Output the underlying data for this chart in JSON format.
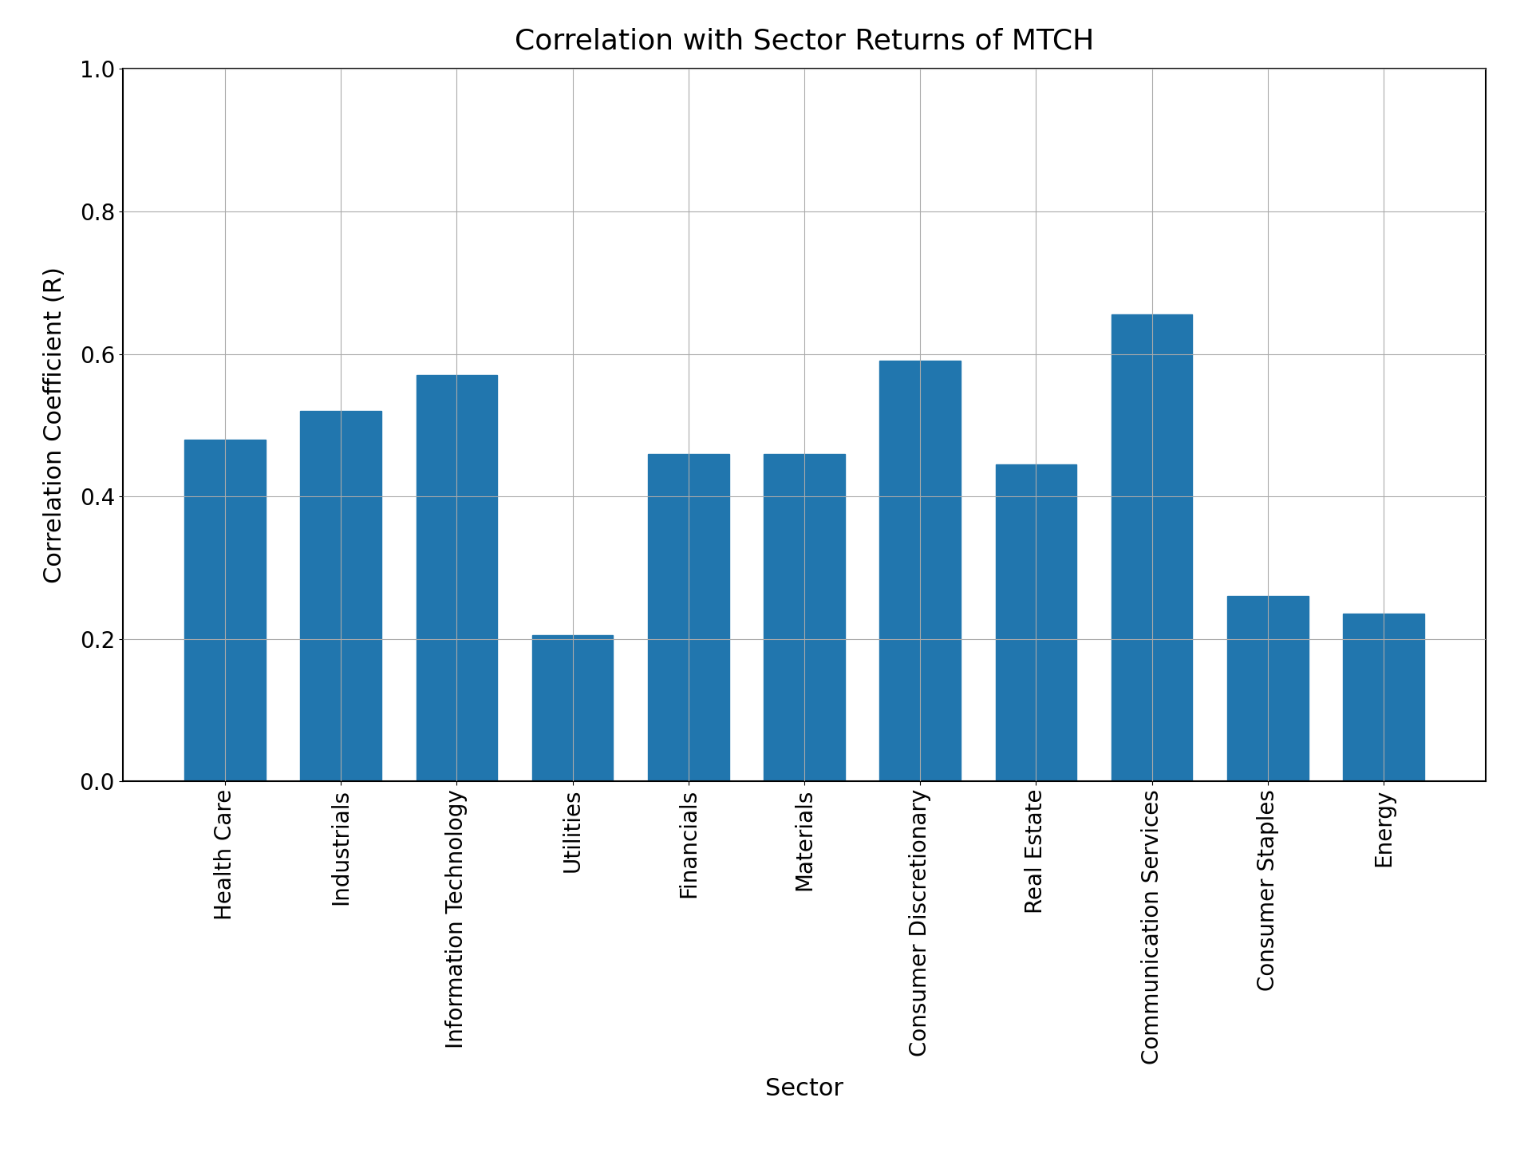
{
  "title": "Correlation with Sector Returns of MTCH",
  "xlabel": "Sector",
  "ylabel": "Correlation Coefficient (R)",
  "categories": [
    "Health Care",
    "Industrials",
    "Information Technology",
    "Utilities",
    "Financials",
    "Materials",
    "Consumer Discretionary",
    "Real Estate",
    "Communication Services",
    "Consumer Staples",
    "Energy"
  ],
  "values": [
    0.48,
    0.52,
    0.57,
    0.205,
    0.46,
    0.46,
    0.59,
    0.445,
    0.655,
    0.26,
    0.235
  ],
  "bar_color": "#2176AE",
  "ylim": [
    0.0,
    1.0
  ],
  "yticks": [
    0.0,
    0.2,
    0.4,
    0.6,
    0.8,
    1.0
  ],
  "title_fontsize": 26,
  "label_fontsize": 22,
  "tick_fontsize": 20,
  "bar_width": 0.7,
  "background_color": "#ffffff",
  "grid_color": "#aaaaaa",
  "grid_linewidth": 0.8
}
